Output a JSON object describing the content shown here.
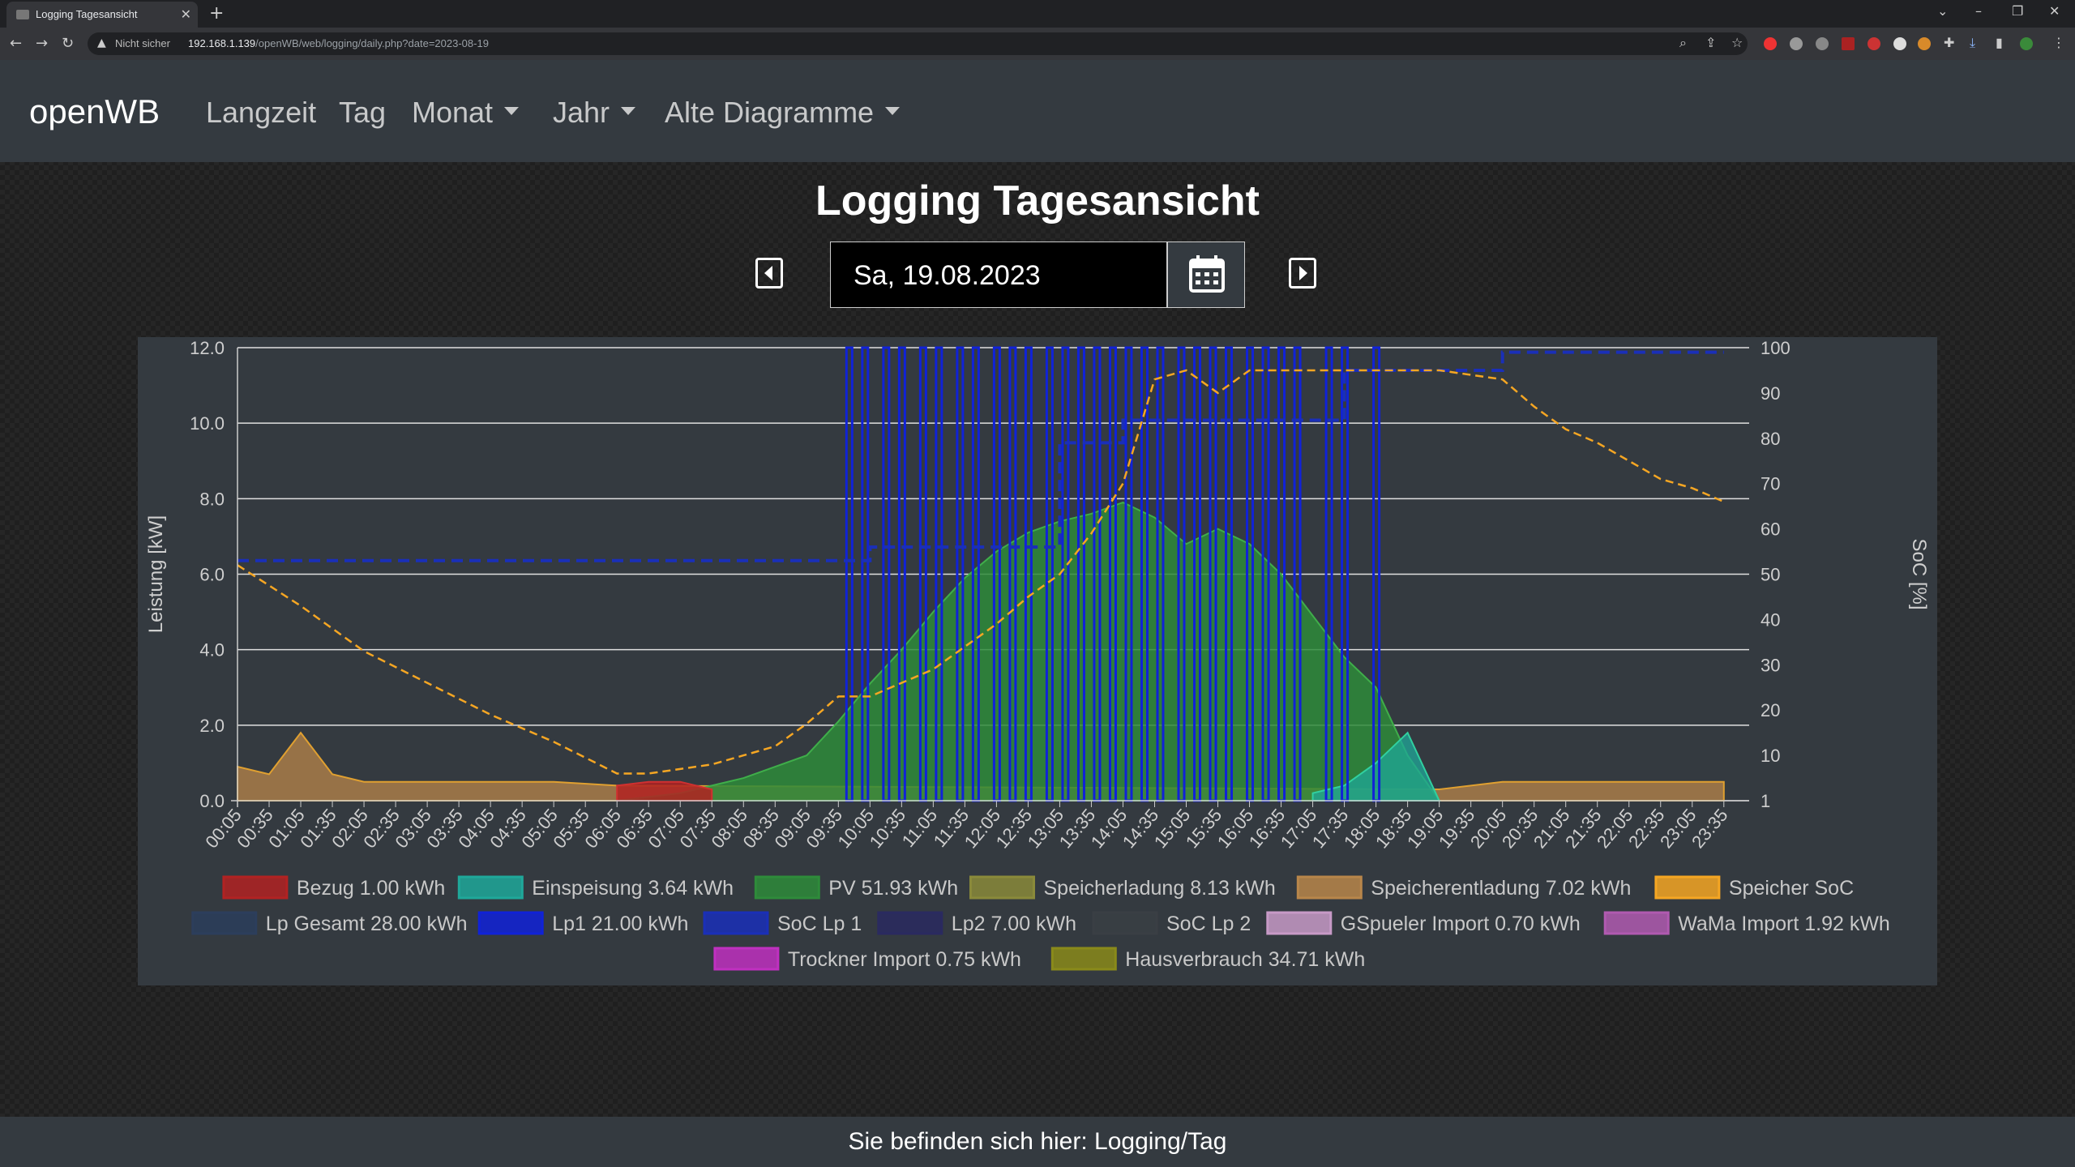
{
  "browser": {
    "tab_title": "Logging Tagesansicht",
    "not_secure": "Nicht sicher",
    "url_host": "192.168.1.139",
    "url_path": "/openWB/web/logging/daily.php?date=2023-08-19"
  },
  "navbar": {
    "brand": "openWB",
    "items": [
      {
        "label": "Langzeit"
      },
      {
        "label": "Tag"
      },
      {
        "label": "Monat"
      },
      {
        "label": "Jahr"
      },
      {
        "label": "Alte Diagramme"
      }
    ]
  },
  "page": {
    "title": "Logging Tagesansicht",
    "date": "Sa, 19.08.2023"
  },
  "footer": {
    "breadcrumb": "Sie befinden sich hier: Logging/Tag"
  },
  "chart_data": {
    "type": "area",
    "ylabel_left": "Leistung [kW]",
    "ylabel_right": "SoC [%]",
    "ylim_left": [
      0,
      12
    ],
    "ylim_right": [
      0,
      100
    ],
    "left_ticks": [
      "0.0",
      "2.0",
      "4.0",
      "6.0",
      "8.0",
      "10.0",
      "12.0"
    ],
    "right_ticks": [
      "1",
      "10",
      "20",
      "30",
      "40",
      "50",
      "60",
      "70",
      "80",
      "90",
      "100"
    ],
    "x_ticks": [
      "00:05",
      "00:35",
      "01:05",
      "01:35",
      "02:05",
      "02:35",
      "03:05",
      "03:35",
      "04:05",
      "04:35",
      "05:05",
      "05:35",
      "06:05",
      "06:35",
      "07:05",
      "07:35",
      "08:05",
      "08:35",
      "09:05",
      "09:35",
      "10:05",
      "10:35",
      "11:05",
      "11:35",
      "12:05",
      "12:35",
      "13:05",
      "13:35",
      "14:05",
      "14:35",
      "15:05",
      "15:35",
      "16:05",
      "16:35",
      "17:05",
      "17:35",
      "18:05",
      "18:35",
      "19:05",
      "19:35",
      "20:05",
      "20:35",
      "21:05",
      "21:35",
      "22:05",
      "22:35",
      "23:05",
      "23:35"
    ],
    "grid": true,
    "legend_position": "bottom",
    "legend": [
      {
        "label": "Bezug 1.00 kWh",
        "color": "#b22222"
      },
      {
        "label": "Einspeisung 3.64 kWh",
        "color": "#1fa89a"
      },
      {
        "label": "PV 51.93 kWh",
        "color": "#2e8b3a"
      },
      {
        "label": "Speicherladung 8.13 kWh",
        "color": "#8a8a3a"
      },
      {
        "label": "Speicherentladung 7.02 kWh",
        "color": "#b8864a"
      },
      {
        "label": "Speicher SoC",
        "color": "#f5a623"
      },
      {
        "label": "Lp Gesamt 28.00 kWh",
        "color": "#2c3e5c"
      },
      {
        "label": "Lp1 21.00 kWh",
        "color": "#1022d8"
      },
      {
        "label": "SoC Lp 1",
        "color": "#1a2fb8"
      },
      {
        "label": "Lp2 7.00 kWh",
        "color": "#2a2a60"
      },
      {
        "label": "SoC Lp 2",
        "color": "#3a3f44"
      },
      {
        "label": "GSpueler Import 0.70 kWh",
        "color": "#c79ac7"
      },
      {
        "label": "WaMa Import 1.92 kWh",
        "color": "#b05ab0"
      },
      {
        "label": "Trockner Import 0.75 kWh",
        "color": "#c030c0"
      },
      {
        "label": "Hausverbrauch 34.71 kWh",
        "color": "#8a8a1a"
      }
    ],
    "series": {
      "pv": {
        "x": [
          "06:05",
          "07:05",
          "08:05",
          "09:05",
          "09:35",
          "10:05",
          "10:35",
          "11:05",
          "11:35",
          "12:05",
          "12:35",
          "13:05",
          "13:35",
          "14:05",
          "14:35",
          "15:05",
          "15:35",
          "16:05",
          "16:35",
          "17:05",
          "17:35",
          "18:05",
          "18:35",
          "19:05"
        ],
        "y": [
          0.0,
          0.2,
          0.6,
          1.2,
          2.1,
          3.1,
          4.0,
          5.0,
          5.9,
          6.6,
          7.1,
          7.4,
          7.6,
          7.9,
          7.5,
          6.8,
          7.2,
          6.8,
          6.0,
          4.9,
          3.8,
          3.0,
          1.2,
          0.0
        ]
      },
      "speicher_soc": {
        "x": [
          "00:05",
          "01:05",
          "02:05",
          "03:05",
          "04:05",
          "05:05",
          "06:05",
          "06:35",
          "07:05",
          "07:35",
          "08:05",
          "08:35",
          "09:05",
          "09:35",
          "10:05",
          "10:35",
          "11:05",
          "11:35",
          "12:05",
          "12:35",
          "13:05",
          "13:35",
          "14:05",
          "14:35",
          "15:05",
          "15:35",
          "16:05",
          "16:35",
          "17:05",
          "17:35",
          "18:05",
          "18:35",
          "19:05",
          "19:35",
          "20:05",
          "20:35",
          "21:05",
          "21:35",
          "22:05",
          "22:35",
          "23:05",
          "23:35"
        ],
        "y": [
          52,
          43,
          33,
          26,
          19,
          13,
          6,
          6,
          7,
          8,
          10,
          12,
          17,
          23,
          23,
          26,
          29,
          34,
          39,
          45,
          50,
          59,
          70,
          93,
          95,
          90,
          95,
          95,
          95,
          95,
          95,
          95,
          95,
          94,
          93,
          87,
          82,
          79,
          75,
          71,
          69,
          66
        ]
      },
      "soc_lp1": {
        "x": [
          "00:05",
          "09:35",
          "10:05",
          "11:35",
          "12:35",
          "13:05",
          "14:05",
          "15:05",
          "17:35",
          "18:05",
          "19:35",
          "20:05",
          "23:35"
        ],
        "y": [
          53,
          53,
          56,
          56,
          56,
          79,
          84,
          84,
          95,
          95,
          95,
          99,
          99
        ]
      },
      "speicherentladung": {
        "x": [
          "00:05",
          "00:35",
          "01:05",
          "01:35",
          "02:05",
          "03:05",
          "04:05",
          "05:05",
          "06:05",
          "19:05",
          "20:05",
          "21:05",
          "22:05",
          "23:05",
          "23:35"
        ],
        "y": [
          0.9,
          0.7,
          1.8,
          0.7,
          0.5,
          0.5,
          0.5,
          0.5,
          0.4,
          0.3,
          0.5,
          0.5,
          0.5,
          0.5,
          0.5
        ]
      },
      "bezug": {
        "x": [
          "06:05",
          "06:35",
          "07:05",
          "07:35"
        ],
        "y": [
          0.4,
          0.5,
          0.5,
          0.3
        ]
      },
      "einspeisung": {
        "x": [
          "17:05",
          "17:35",
          "18:05",
          "18:35",
          "19:05"
        ],
        "y": [
          0.2,
          0.4,
          1.0,
          1.8,
          0.0
        ]
      }
    }
  }
}
